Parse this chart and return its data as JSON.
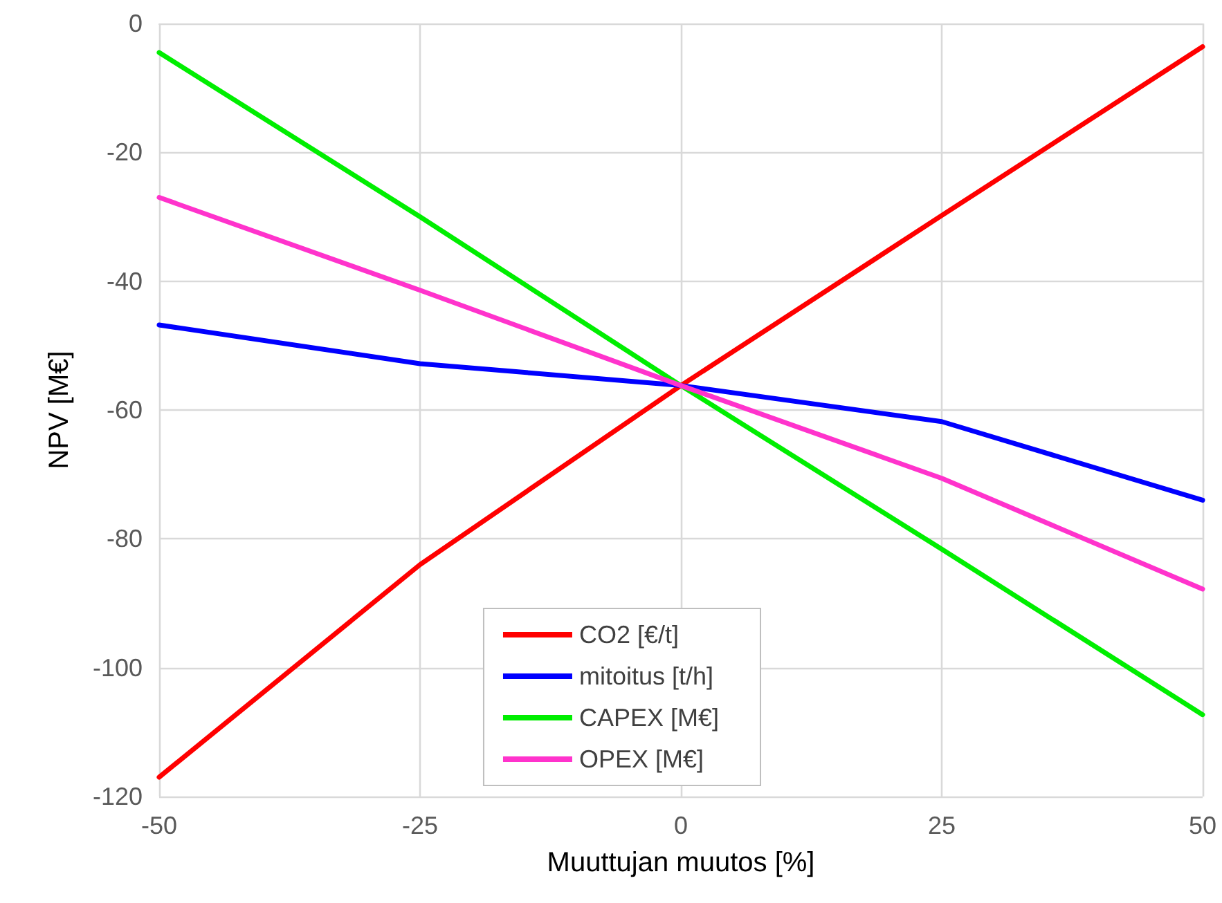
{
  "chart_data": {
    "type": "line",
    "xlabel": "Muuttujan muutos [%]",
    "ylabel": "NPV [M€]",
    "x": [
      -50,
      -25,
      0,
      25,
      50
    ],
    "series": [
      {
        "name": "CO2 [€/t]",
        "color": "#ff0000",
        "values": [
          -117,
          -84,
          -56.2,
          -29.8,
          -3.6
        ]
      },
      {
        "name": "mitoitus [t/h]",
        "color": "#0000ff",
        "values": [
          -46.8,
          -52.8,
          -56.2,
          -61.8,
          -74
        ]
      },
      {
        "name": "CAPEX [M€]",
        "color": "#00ee00",
        "values": [
          -4.5,
          -30,
          -56.2,
          -81.6,
          -107.3
        ]
      },
      {
        "name": "OPEX [M€]",
        "color": "#ff33cc",
        "values": [
          -27,
          -41.4,
          -56.2,
          -70.6,
          -87.8
        ]
      }
    ],
    "xlim": [
      -50,
      50
    ],
    "xticks": [
      -50,
      -25,
      0,
      25,
      50
    ],
    "ylim": [
      -120,
      0
    ],
    "yticks": [
      -120,
      -100,
      -80,
      -60,
      -40,
      -20,
      0
    ],
    "grid": true,
    "legend": "bottom",
    "marker": "none",
    "line_style": "solid"
  }
}
